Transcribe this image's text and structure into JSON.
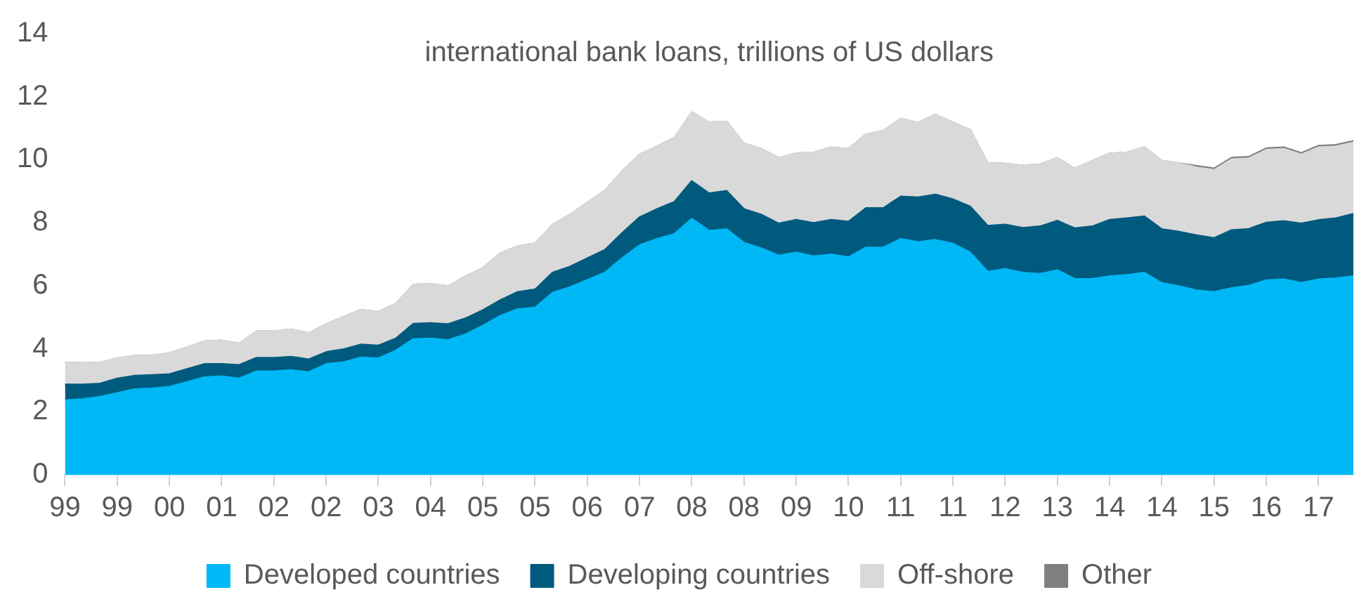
{
  "chart_data": {
    "type": "area",
    "title": "international bank loans, trillions of US dollars",
    "categories": [
      "99",
      null,
      null,
      "99",
      null,
      null,
      "00",
      null,
      null,
      "01",
      null,
      null,
      "02",
      null,
      null,
      "02",
      null,
      null,
      "03",
      null,
      null,
      "04",
      null,
      null,
      "05",
      null,
      null,
      "05",
      null,
      null,
      "06",
      null,
      null,
      "07",
      null,
      null,
      "08",
      null,
      null,
      "08",
      null,
      null,
      "09",
      null,
      null,
      "10",
      null,
      null,
      "11",
      null,
      null,
      "11",
      null,
      null,
      "12",
      null,
      null,
      "13",
      null,
      null,
      "14",
      null,
      null,
      "14",
      null,
      null,
      "15",
      null,
      null,
      "16",
      null,
      null,
      "17",
      null,
      null
    ],
    "stacked": true,
    "ylim": [
      0,
      14
    ],
    "yticks": [
      0,
      2,
      4,
      6,
      8,
      10,
      12,
      14
    ],
    "grid": false,
    "legend": "bottom",
    "series": [
      {
        "name": "Developed countries",
        "color": "#00b8f5",
        "values": [
          2.37,
          2.4,
          2.48,
          2.6,
          2.72,
          2.75,
          2.8,
          2.95,
          3.1,
          3.13,
          3.06,
          3.29,
          3.29,
          3.33,
          3.26,
          3.52,
          3.58,
          3.73,
          3.7,
          3.95,
          4.31,
          4.33,
          4.28,
          4.46,
          4.74,
          5.05,
          5.26,
          5.31,
          5.78,
          5.96,
          6.19,
          6.42,
          6.88,
          7.29,
          7.49,
          7.65,
          8.13,
          7.75,
          7.8,
          7.37,
          7.19,
          6.96,
          7.06,
          6.94,
          7.0,
          6.91,
          7.22,
          7.22,
          7.49,
          7.39,
          7.46,
          7.34,
          7.06,
          6.45,
          6.54,
          6.42,
          6.38,
          6.5,
          6.22,
          6.22,
          6.31,
          6.35,
          6.42,
          6.09,
          5.99,
          5.86,
          5.81,
          5.93,
          6.01,
          6.18,
          6.21,
          6.1,
          6.21,
          6.24,
          6.31
        ]
      },
      {
        "name": "Developing countries",
        "color": "#005a7e",
        "values": [
          0.5,
          0.47,
          0.42,
          0.46,
          0.43,
          0.42,
          0.4,
          0.41,
          0.42,
          0.39,
          0.43,
          0.43,
          0.43,
          0.42,
          0.41,
          0.38,
          0.41,
          0.41,
          0.41,
          0.38,
          0.49,
          0.49,
          0.51,
          0.51,
          0.49,
          0.5,
          0.55,
          0.58,
          0.64,
          0.65,
          0.69,
          0.72,
          0.8,
          0.89,
          0.95,
          1.02,
          1.2,
          1.19,
          1.22,
          1.07,
          1.07,
          1.02,
          1.04,
          1.06,
          1.1,
          1.13,
          1.25,
          1.25,
          1.35,
          1.42,
          1.44,
          1.41,
          1.46,
          1.46,
          1.41,
          1.42,
          1.51,
          1.57,
          1.61,
          1.67,
          1.79,
          1.8,
          1.79,
          1.71,
          1.73,
          1.75,
          1.71,
          1.84,
          1.8,
          1.83,
          1.85,
          1.88,
          1.88,
          1.91,
          1.98
        ]
      },
      {
        "name": "Off-shore",
        "color": "#d9d9d9",
        "values": [
          0.69,
          0.68,
          0.66,
          0.64,
          0.63,
          0.62,
          0.67,
          0.69,
          0.72,
          0.75,
          0.68,
          0.84,
          0.84,
          0.87,
          0.83,
          0.89,
          1.03,
          1.1,
          1.07,
          1.1,
          1.24,
          1.24,
          1.2,
          1.33,
          1.34,
          1.48,
          1.45,
          1.46,
          1.52,
          1.65,
          1.76,
          1.88,
          1.95,
          1.99,
          1.99,
          2.03,
          2.18,
          2.25,
          2.2,
          2.08,
          2.09,
          2.08,
          2.11,
          2.23,
          2.3,
          2.31,
          2.34,
          2.45,
          2.47,
          2.37,
          2.54,
          2.44,
          2.43,
          1.98,
          1.93,
          1.98,
          1.97,
          1.99,
          1.89,
          2.08,
          2.1,
          2.09,
          2.19,
          2.17,
          2.17,
          2.15,
          2.16,
          2.25,
          2.24,
          2.31,
          2.29,
          2.19,
          2.31,
          2.28,
          2.26
        ]
      },
      {
        "name": "Other",
        "color": "#808080",
        "values": [
          0,
          0,
          0,
          0,
          0,
          0,
          0,
          0,
          0,
          0,
          0,
          0,
          0,
          0,
          0,
          0,
          0,
          0,
          0,
          0,
          0,
          0,
          0,
          0,
          0,
          0,
          0,
          0,
          0,
          0,
          0,
          0,
          0,
          0,
          0,
          0,
          0,
          0,
          0,
          0,
          0,
          0,
          0,
          0,
          0,
          0,
          0,
          0,
          0,
          0,
          0,
          0,
          0,
          0,
          0,
          0,
          0,
          0,
          0,
          0,
          0,
          0,
          0,
          0,
          0,
          0.05,
          0.05,
          0.05,
          0.05,
          0.05,
          0.05,
          0.05,
          0.05,
          0.05,
          0.05
        ]
      }
    ]
  }
}
